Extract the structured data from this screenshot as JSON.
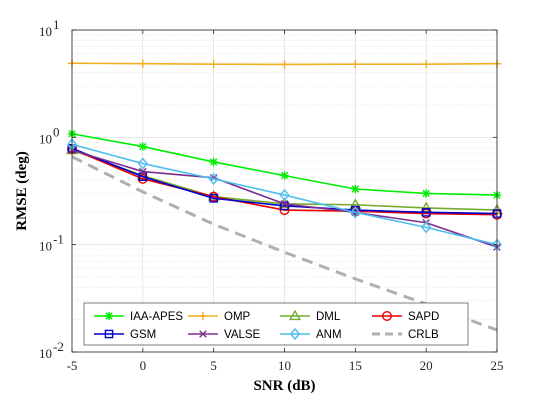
{
  "chart_data": {
    "type": "line",
    "title": "",
    "xlabel": "SNR (dB)",
    "ylabel": "RMSE (deg)",
    "x": [
      -5,
      0,
      5,
      10,
      15,
      20,
      25
    ],
    "xticks": [
      "-5",
      "0",
      "5",
      "10",
      "15",
      "20",
      "25"
    ],
    "xlim": [
      -5,
      25
    ],
    "ylim": [
      0.01,
      10
    ],
    "yscale": "log",
    "yticks": [
      {
        "base": "10",
        "exp": "-2",
        "value": 0.01
      },
      {
        "base": "10",
        "exp": "-1",
        "value": 0.1
      },
      {
        "base": "10",
        "exp": "0",
        "value": 1
      },
      {
        "base": "10",
        "exp": "1",
        "value": 10
      }
    ],
    "grid": true,
    "legend_position": "bottom",
    "series": [
      {
        "name": "IAA-APES",
        "color": "#00ee00",
        "marker": "star",
        "dash": "none",
        "values": [
          1.08,
          0.82,
          0.59,
          0.44,
          0.33,
          0.3,
          0.29
        ]
      },
      {
        "name": "OMP",
        "color": "#f0b020",
        "marker": "plus",
        "dash": "none",
        "values": [
          4.9,
          4.85,
          4.8,
          4.78,
          4.8,
          4.8,
          4.85
        ]
      },
      {
        "name": "DML",
        "color": "#77ac30",
        "marker": "triangle",
        "dash": "none",
        "values": [
          0.76,
          0.44,
          0.28,
          0.24,
          0.235,
          0.22,
          0.21
        ]
      },
      {
        "name": "SAPD",
        "color": "#ee0000",
        "marker": "circle",
        "dash": "none",
        "values": [
          0.78,
          0.41,
          0.28,
          0.21,
          0.205,
          0.195,
          0.19
        ]
      },
      {
        "name": "GSM",
        "color": "#0000cc",
        "marker": "square",
        "dash": "none",
        "values": [
          0.79,
          0.43,
          0.27,
          0.23,
          0.21,
          0.2,
          0.195
        ]
      },
      {
        "name": "VALSE",
        "color": "#7e2f8e",
        "marker": "x",
        "dash": "none",
        "values": [
          0.76,
          0.48,
          0.42,
          0.24,
          0.2,
          0.16,
          0.095
        ]
      },
      {
        "name": "ANM",
        "color": "#4dbeee",
        "marker": "diamond",
        "dash": "none",
        "values": [
          0.86,
          0.57,
          0.41,
          0.29,
          0.2,
          0.145,
          0.1
        ]
      },
      {
        "name": "CRLB",
        "color": "#b0b0b0",
        "marker": "none",
        "dash": "dashed",
        "values": [
          0.66,
          0.31,
          0.155,
          0.085,
          0.048,
          0.028,
          0.016
        ]
      }
    ]
  }
}
